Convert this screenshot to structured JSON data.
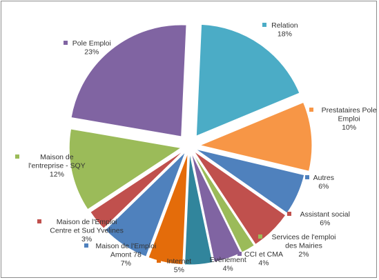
{
  "chart_data": {
    "type": "pie",
    "slices": [
      {
        "name": "Relation",
        "value": 18,
        "label": "18%",
        "color": "#4BACC6"
      },
      {
        "name": "Prestataires Pole Emploi",
        "value": 10,
        "label": "10%",
        "color": "#F79646"
      },
      {
        "name": "Autres",
        "value": 6,
        "label": "6%",
        "color": "#4F81BD"
      },
      {
        "name": "Assistant social",
        "value": 6,
        "label": "6%",
        "color": "#C0504D"
      },
      {
        "name": "Services de l'emploi des Mairies",
        "value": 2,
        "label": "2%",
        "color": "#9BBB59"
      },
      {
        "name": "CCI et CMA",
        "value": 4,
        "label": "4%",
        "color": "#8064A2"
      },
      {
        "name": "Evènement",
        "value": 4,
        "label": "4%",
        "color": "#31859C"
      },
      {
        "name": "Internet",
        "value": 5,
        "label": "5%",
        "color": "#E46C0A"
      },
      {
        "name": "Maison de l'Emploi Amont 78",
        "value": 7,
        "label": "7%",
        "color": "#4F81BD"
      },
      {
        "name": "Maison de l'Emploi Centre et Sud Yvelines",
        "value": 3,
        "label": "3%",
        "color": "#C0504D"
      },
      {
        "name": "Maison de l'entreprise - SQY",
        "value": 12,
        "label": "12%",
        "color": "#9BBB59"
      },
      {
        "name": "Pole Emploi",
        "value": 23,
        "label": "23%",
        "color": "#8064A2"
      }
    ]
  }
}
